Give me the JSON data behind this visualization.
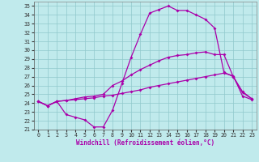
{
  "bg_color": "#c0eaec",
  "grid_color": "#90c8cc",
  "line_color": "#aa00aa",
  "xlabel": "Windchill (Refroidissement éolien,°C)",
  "xlim": [
    -0.5,
    23.5
  ],
  "ylim": [
    21,
    35.5
  ],
  "xticks": [
    0,
    1,
    2,
    3,
    4,
    5,
    6,
    7,
    8,
    9,
    10,
    11,
    12,
    13,
    14,
    15,
    16,
    17,
    18,
    19,
    20,
    21,
    22,
    23
  ],
  "yticks": [
    21,
    22,
    23,
    24,
    25,
    26,
    27,
    28,
    29,
    30,
    31,
    32,
    33,
    34,
    35
  ],
  "curve1_x": [
    0,
    1,
    2,
    3,
    4,
    5,
    6,
    7,
    8,
    9,
    10,
    11,
    12,
    13,
    14,
    15,
    16,
    17,
    18,
    19,
    20,
    21,
    22,
    23
  ],
  "curve1_y": [
    24.2,
    23.7,
    24.2,
    24.3,
    24.4,
    24.5,
    24.6,
    24.8,
    24.9,
    25.1,
    25.3,
    25.5,
    25.8,
    26.0,
    26.2,
    26.4,
    26.6,
    26.8,
    27.0,
    27.2,
    27.4,
    27.1,
    24.8,
    24.4
  ],
  "curve2_x": [
    0,
    1,
    2,
    3,
    4,
    5,
    6,
    7,
    8,
    9,
    10,
    11,
    12,
    13,
    14,
    15,
    16,
    17,
    18,
    19,
    20,
    21,
    22,
    23
  ],
  "curve2_y": [
    24.2,
    23.7,
    24.2,
    24.3,
    24.5,
    24.7,
    24.8,
    25.0,
    26.0,
    26.5,
    27.2,
    27.8,
    28.3,
    28.8,
    29.2,
    29.4,
    29.5,
    29.7,
    29.8,
    29.5,
    29.5,
    27.0,
    25.3,
    24.5
  ],
  "curve3_x": [
    0,
    1,
    2,
    3,
    4,
    5,
    6,
    7,
    8,
    9,
    10,
    11,
    12,
    13,
    14,
    15,
    16,
    17,
    18,
    19,
    20,
    21,
    22,
    23
  ],
  "curve3_y": [
    24.2,
    23.7,
    24.2,
    22.7,
    22.4,
    22.1,
    21.3,
    21.3,
    23.2,
    26.2,
    29.2,
    31.8,
    34.2,
    34.6,
    35.0,
    34.5,
    34.5,
    34.0,
    33.5,
    32.5,
    27.5,
    27.0,
    25.2,
    24.5
  ],
  "markersize": 2.0,
  "linewidth": 0.9,
  "xlabel_fontsize": 5.5,
  "tick_fontsize": 4.8
}
